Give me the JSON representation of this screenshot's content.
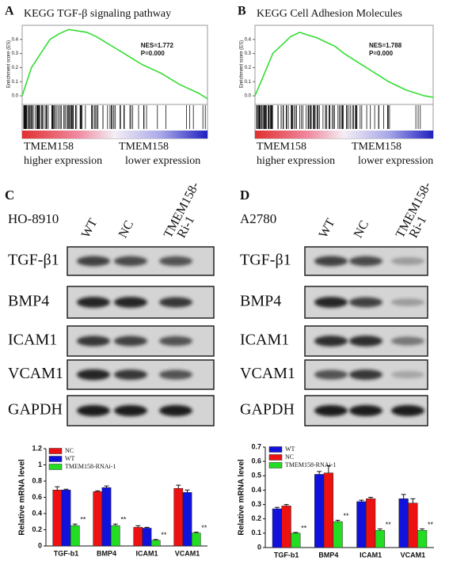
{
  "chart_data": [
    {
      "type": "gsea",
      "panel": "A",
      "title": "KEGG TGF-β signaling pathway",
      "y_label": "Enrichment score (ES)",
      "color": "#33dd33",
      "x": [
        0,
        5,
        10,
        15,
        20,
        25,
        30,
        35,
        40,
        45,
        50,
        55,
        60,
        65,
        70,
        75,
        80,
        85,
        90,
        95,
        100
      ],
      "xlim": [
        0,
        100
      ],
      "values": [
        0,
        0.2,
        0.3,
        0.4,
        0.44,
        0.47,
        0.46,
        0.45,
        0.42,
        0.38,
        0.34,
        0.3,
        0.26,
        0.22,
        0.19,
        0.16,
        0.12,
        0.08,
        0.05,
        0.02,
        -0.02
      ],
      "ylim": [
        -0.05,
        0.5
      ],
      "yticks": [
        {
          "value": 0,
          "label": "0.0"
        },
        0.1,
        0.2,
        0.3,
        0.4
      ],
      "annotations": [
        "NES=1.772",
        "P=0.000"
      ],
      "left_label": [
        "TMEM158",
        "higher expression"
      ],
      "right_label": [
        "TMEM158",
        "lower expression"
      ]
    },
    {
      "type": "gsea",
      "panel": "B",
      "title": "KEGG Cell Adhesion Molecules",
      "y_label": "Enrichment score (ES)",
      "color": "#33dd33",
      "x": [
        0,
        5,
        10,
        15,
        20,
        25,
        30,
        35,
        40,
        45,
        50,
        55,
        60,
        65,
        70,
        75,
        80,
        85,
        90,
        95,
        100
      ],
      "xlim": [
        0,
        100
      ],
      "values": [
        0,
        0.15,
        0.3,
        0.36,
        0.42,
        0.45,
        0.43,
        0.41,
        0.38,
        0.35,
        0.3,
        0.26,
        0.22,
        0.18,
        0.14,
        0.1,
        0.07,
        0.04,
        0.02,
        0,
        -0.01
      ],
      "ylim": [
        -0.05,
        0.5
      ],
      "yticks": [
        {
          "value": 0,
          "label": "0.0"
        },
        0.1,
        0.2,
        0.3,
        0.4
      ],
      "annotations": [
        "NES=1.788",
        "P=0.000"
      ],
      "left_label": [
        "TMEM158",
        "higher expression"
      ],
      "right_label": [
        "TMEM158",
        "lower expression"
      ]
    },
    {
      "type": "bar",
      "y_label": "Relative mRNA level",
      "categories": [
        "TGF-b1",
        "BMP4",
        "ICAM1",
        "VCAM1"
      ],
      "series": [
        {
          "name": "NC",
          "color": "#ee1111",
          "values": [
            0.69,
            0.67,
            0.23,
            0.71
          ],
          "errors": [
            0.04,
            0.01,
            0.02,
            0.04
          ]
        },
        {
          "name": "WT",
          "color": "#1111dd",
          "values": [
            0.69,
            0.72,
            0.22,
            0.66
          ],
          "errors": [
            0.01,
            0.02,
            0.01,
            0.03
          ]
        },
        {
          "name": "TMEM158-RNAi-1",
          "color": "#22dd22",
          "values": [
            0.25,
            0.25,
            0.07,
            0.16
          ],
          "errors": [
            0.02,
            0.02,
            0.01,
            0.01
          ]
        }
      ],
      "significance": [
        "**",
        "**",
        "**",
        "**"
      ],
      "ylim": [
        0,
        1.2
      ],
      "yticks": [
        0,
        0.2,
        0.4,
        0.6,
        0.8,
        1,
        1.2
      ]
    },
    {
      "type": "bar",
      "y_label": "Relative mRNA level",
      "categories": [
        "TGF-b1",
        "BMP4",
        "ICAM1",
        "VCAM1"
      ],
      "series": [
        {
          "name": "WT",
          "color": "#1111dd",
          "values": [
            0.27,
            0.51,
            0.32,
            0.34
          ],
          "errors": [
            0.01,
            0.02,
            0.01,
            0.03
          ]
        },
        {
          "name": "NC",
          "color": "#ee1111",
          "values": [
            0.29,
            0.52,
            0.34,
            0.31
          ],
          "errors": [
            0.01,
            0.05,
            0.01,
            0.03
          ]
        },
        {
          "name": "TMEM158-RNAi-1",
          "color": "#22dd22",
          "values": [
            0.1,
            0.18,
            0.12,
            0.12
          ],
          "errors": [
            0.005,
            0.01,
            0.01,
            0.01
          ]
        }
      ],
      "significance": [
        "**",
        "**",
        "**",
        "**"
      ],
      "ylim": [
        0,
        0.7
      ],
      "yticks": [
        0,
        0.1,
        0.2,
        0.3,
        0.4,
        0.5,
        0.6,
        0.7
      ]
    }
  ],
  "blots": [
    {
      "panel": "C",
      "cell_line": "HO-8910",
      "lanes": [
        [
          "WT"
        ],
        [
          "NC"
        ],
        [
          "TMEM158-",
          "Ri-1"
        ]
      ],
      "rows": [
        "TGF-β1",
        "BMP4",
        "ICAM1",
        "VCAM1",
        "GAPDH"
      ]
    },
    {
      "panel": "D",
      "cell_line": "A2780",
      "lanes": [
        [
          "WT"
        ],
        [
          "NC"
        ],
        [
          "TMEM158-",
          "Ri-1"
        ]
      ],
      "rows": [
        "TGF-β1",
        "BMP4",
        "ICAM1",
        "VCAM1",
        "GAPDH"
      ]
    }
  ]
}
